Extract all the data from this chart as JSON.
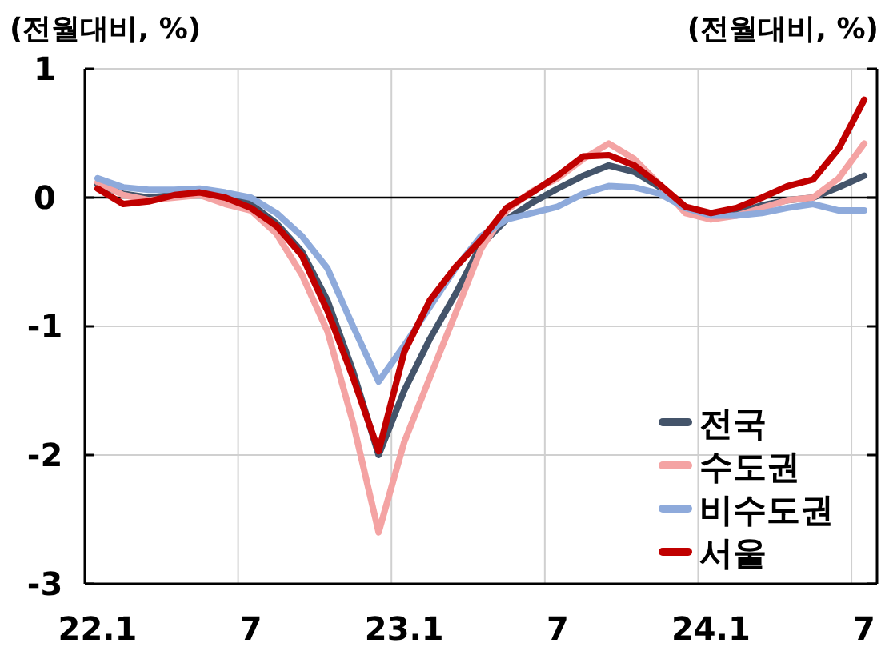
{
  "chart_data": {
    "type": "line",
    "ylabel": "(전월대비, %)",
    "y2label": "(전월대비, %)",
    "categories": [
      "22.1",
      null,
      null,
      null,
      null,
      null,
      "7",
      null,
      null,
      null,
      null,
      null,
      "23.1",
      null,
      null,
      null,
      null,
      null,
      "7",
      null,
      null,
      null,
      null,
      null,
      "24.1",
      null,
      null,
      null,
      null,
      null,
      "7"
    ],
    "series": [
      {
        "name": "전국",
        "color": "#44546a",
        "values": [
          0.1,
          0.03,
          0.0,
          0.02,
          0.04,
          0.02,
          -0.05,
          -0.2,
          -0.42,
          -0.8,
          -1.35,
          -2.0,
          -1.5,
          -1.1,
          -0.75,
          -0.37,
          -0.17,
          -0.04,
          0.07,
          0.17,
          0.25,
          0.2,
          0.08,
          -0.08,
          -0.14,
          -0.12,
          -0.06,
          -0.02,
          0.0,
          0.08,
          0.17
        ]
      },
      {
        "name": "수도권",
        "color": "#f4a3a3",
        "values": [
          0.12,
          0.02,
          -0.02,
          0.0,
          0.02,
          -0.05,
          -0.1,
          -0.28,
          -0.6,
          -1.04,
          -1.75,
          -2.6,
          -1.9,
          -1.4,
          -0.9,
          -0.4,
          -0.1,
          0.05,
          0.15,
          0.3,
          0.42,
          0.3,
          0.1,
          -0.12,
          -0.17,
          -0.14,
          -0.08,
          -0.02,
          0.0,
          0.15,
          0.42
        ]
      },
      {
        "name": "비수도권",
        "color": "#8eaadb",
        "values": [
          0.15,
          0.08,
          0.06,
          0.06,
          0.07,
          0.04,
          0.0,
          -0.12,
          -0.3,
          -0.55,
          -1.0,
          -1.43,
          -1.15,
          -0.85,
          -0.55,
          -0.3,
          -0.17,
          -0.12,
          -0.07,
          0.03,
          0.09,
          0.08,
          0.03,
          -0.08,
          -0.14,
          -0.14,
          -0.12,
          -0.08,
          -0.05,
          -0.1,
          -0.1
        ]
      },
      {
        "name": "서울",
        "color": "#c00000",
        "values": [
          0.07,
          -0.05,
          -0.03,
          0.02,
          0.04,
          0.0,
          -0.08,
          -0.22,
          -0.45,
          -0.88,
          -1.4,
          -1.97,
          -1.2,
          -0.8,
          -0.54,
          -0.33,
          -0.08,
          0.04,
          0.17,
          0.32,
          0.33,
          0.25,
          0.1,
          -0.07,
          -0.12,
          -0.08,
          0.0,
          0.09,
          0.14,
          0.38,
          0.76
        ]
      }
    ],
    "ylim": [
      -3,
      1
    ],
    "yticks": [
      -3,
      -2,
      -1,
      0,
      1
    ],
    "ref_lines": [
      {
        "axis": "y",
        "value": 0,
        "color": "#000000"
      }
    ],
    "grid": true,
    "legend": "bottom right",
    "marker": "none",
    "line_style": "solid"
  }
}
